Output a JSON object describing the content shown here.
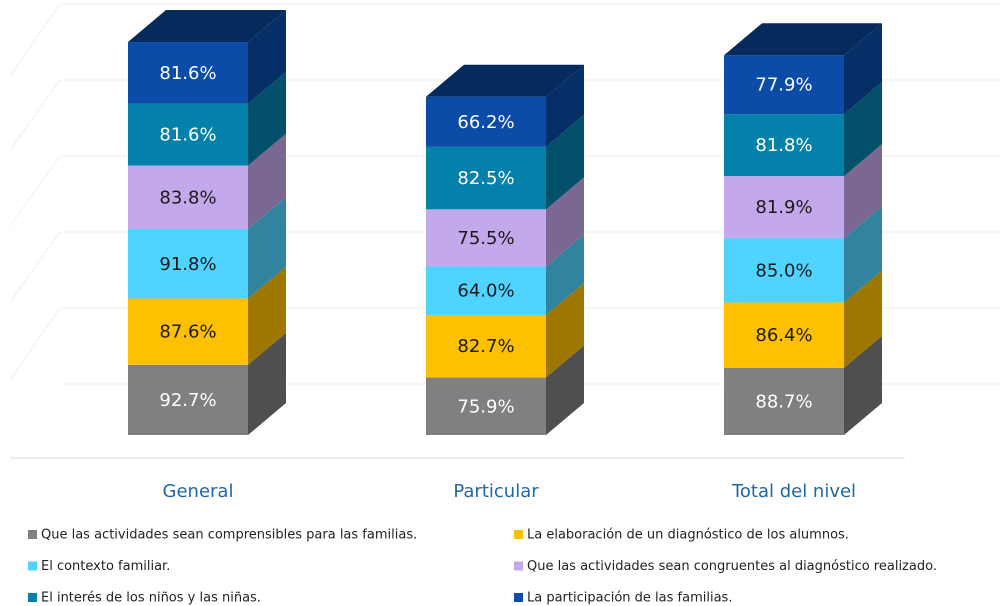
{
  "chart_data": {
    "type": "bar3d_stacked",
    "categories": [
      "General",
      "Particular",
      "Total del nivel"
    ],
    "series": [
      {
        "name": "Que las actividades sean comprensibles para las familias.",
        "color": "#808080",
        "values": [
          92.7,
          75.9,
          88.7
        ],
        "value_labels": [
          "92.7%",
          "75.9%",
          "88.7%"
        ]
      },
      {
        "name": "La elaboración de un diagnóstico de los alumnos.",
        "color": "#ffc000",
        "values": [
          87.6,
          82.7,
          86.4
        ],
        "value_labels": [
          "87.6%",
          "82.7%",
          "86.4%"
        ]
      },
      {
        "name": "El contexto familiar.",
        "color": "#4fd3ff",
        "values": [
          91.8,
          64.0,
          85.0
        ],
        "value_labels": [
          "91.8%",
          "64.0%",
          "85.0%"
        ]
      },
      {
        "name": "Que las actividades sean congruentes al diagnóstico realizado.",
        "color": "#c4a8ec",
        "values": [
          83.8,
          75.5,
          81.9
        ],
        "value_labels": [
          "83.8%",
          "75.5%",
          "81.9%"
        ]
      },
      {
        "name": "El interés de los niños y las niñas.",
        "color": "#0481ab",
        "values": [
          81.6,
          82.5,
          81.8
        ],
        "value_labels": [
          "81.6%",
          "82.5%",
          "81.8%"
        ]
      },
      {
        "name": "La participación de las familias.",
        "color": "#0a4ca8",
        "values": [
          81.6,
          66.2,
          77.9
        ],
        "value_labels": [
          "81.6%",
          "66.2%",
          "77.9%"
        ]
      }
    ]
  }
}
